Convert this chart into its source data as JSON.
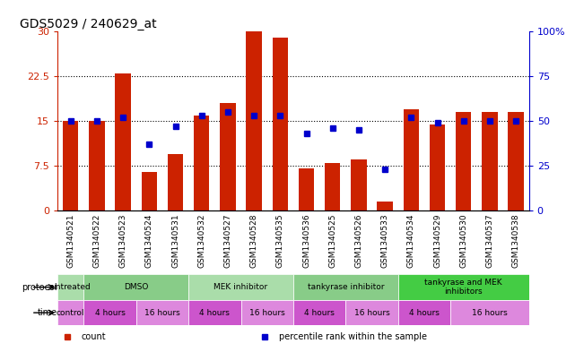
{
  "title": "GDS5029 / 240629_at",
  "samples": [
    "GSM1340521",
    "GSM1340522",
    "GSM1340523",
    "GSM1340524",
    "GSM1340531",
    "GSM1340532",
    "GSM1340527",
    "GSM1340528",
    "GSM1340535",
    "GSM1340536",
    "GSM1340525",
    "GSM1340526",
    "GSM1340533",
    "GSM1340534",
    "GSM1340529",
    "GSM1340530",
    "GSM1340537",
    "GSM1340538"
  ],
  "bar_heights": [
    15.0,
    15.0,
    23.0,
    6.5,
    9.5,
    16.0,
    18.0,
    30.0,
    29.0,
    7.0,
    8.0,
    8.5,
    1.5,
    17.0,
    14.5,
    16.5,
    16.5,
    16.5
  ],
  "blue_vals_pct": [
    50,
    50,
    52,
    37,
    47,
    53,
    55,
    53,
    53,
    43,
    46,
    45,
    23,
    52,
    49,
    50,
    50,
    50
  ],
  "ylim_left": [
    0,
    30
  ],
  "ylim_right": [
    0,
    100
  ],
  "yticks_left": [
    0,
    7.5,
    15,
    22.5,
    30
  ],
  "ytick_labels_left": [
    "0",
    "7.5",
    "15",
    "22.5",
    "30"
  ],
  "yticks_right": [
    0,
    25,
    50,
    75,
    100
  ],
  "ytick_labels_right": [
    "0",
    "25",
    "50",
    "75",
    "100%"
  ],
  "bar_color": "#cc2200",
  "dot_color": "#0000cc",
  "bg_color": "#ffffff",
  "sample_bg": "#cccccc",
  "protocols": [
    {
      "label": "untreated",
      "start": 0,
      "end": 1,
      "color": "#aaddaa"
    },
    {
      "label": "DMSO",
      "start": 1,
      "end": 5,
      "color": "#88cc88"
    },
    {
      "label": "MEK inhibitor",
      "start": 5,
      "end": 9,
      "color": "#aaddaa"
    },
    {
      "label": "tankyrase inhibitor",
      "start": 9,
      "end": 13,
      "color": "#88cc88"
    },
    {
      "label": "tankyrase and MEK\ninhibitors",
      "start": 13,
      "end": 18,
      "color": "#44cc44"
    }
  ],
  "times": [
    {
      "label": "control",
      "start": 0,
      "end": 1,
      "color": "#dd88dd"
    },
    {
      "label": "4 hours",
      "start": 1,
      "end": 3,
      "color": "#cc55cc"
    },
    {
      "label": "16 hours",
      "start": 3,
      "end": 5,
      "color": "#dd88dd"
    },
    {
      "label": "4 hours",
      "start": 5,
      "end": 7,
      "color": "#cc55cc"
    },
    {
      "label": "16 hours",
      "start": 7,
      "end": 9,
      "color": "#dd88dd"
    },
    {
      "label": "4 hours",
      "start": 9,
      "end": 11,
      "color": "#cc55cc"
    },
    {
      "label": "16 hours",
      "start": 11,
      "end": 13,
      "color": "#dd88dd"
    },
    {
      "label": "4 hours",
      "start": 13,
      "end": 15,
      "color": "#cc55cc"
    },
    {
      "label": "16 hours",
      "start": 15,
      "end": 18,
      "color": "#dd88dd"
    }
  ],
  "legend_items": [
    {
      "label": "count",
      "color": "#cc2200"
    },
    {
      "label": "percentile rank within the sample",
      "color": "#0000cc"
    }
  ]
}
